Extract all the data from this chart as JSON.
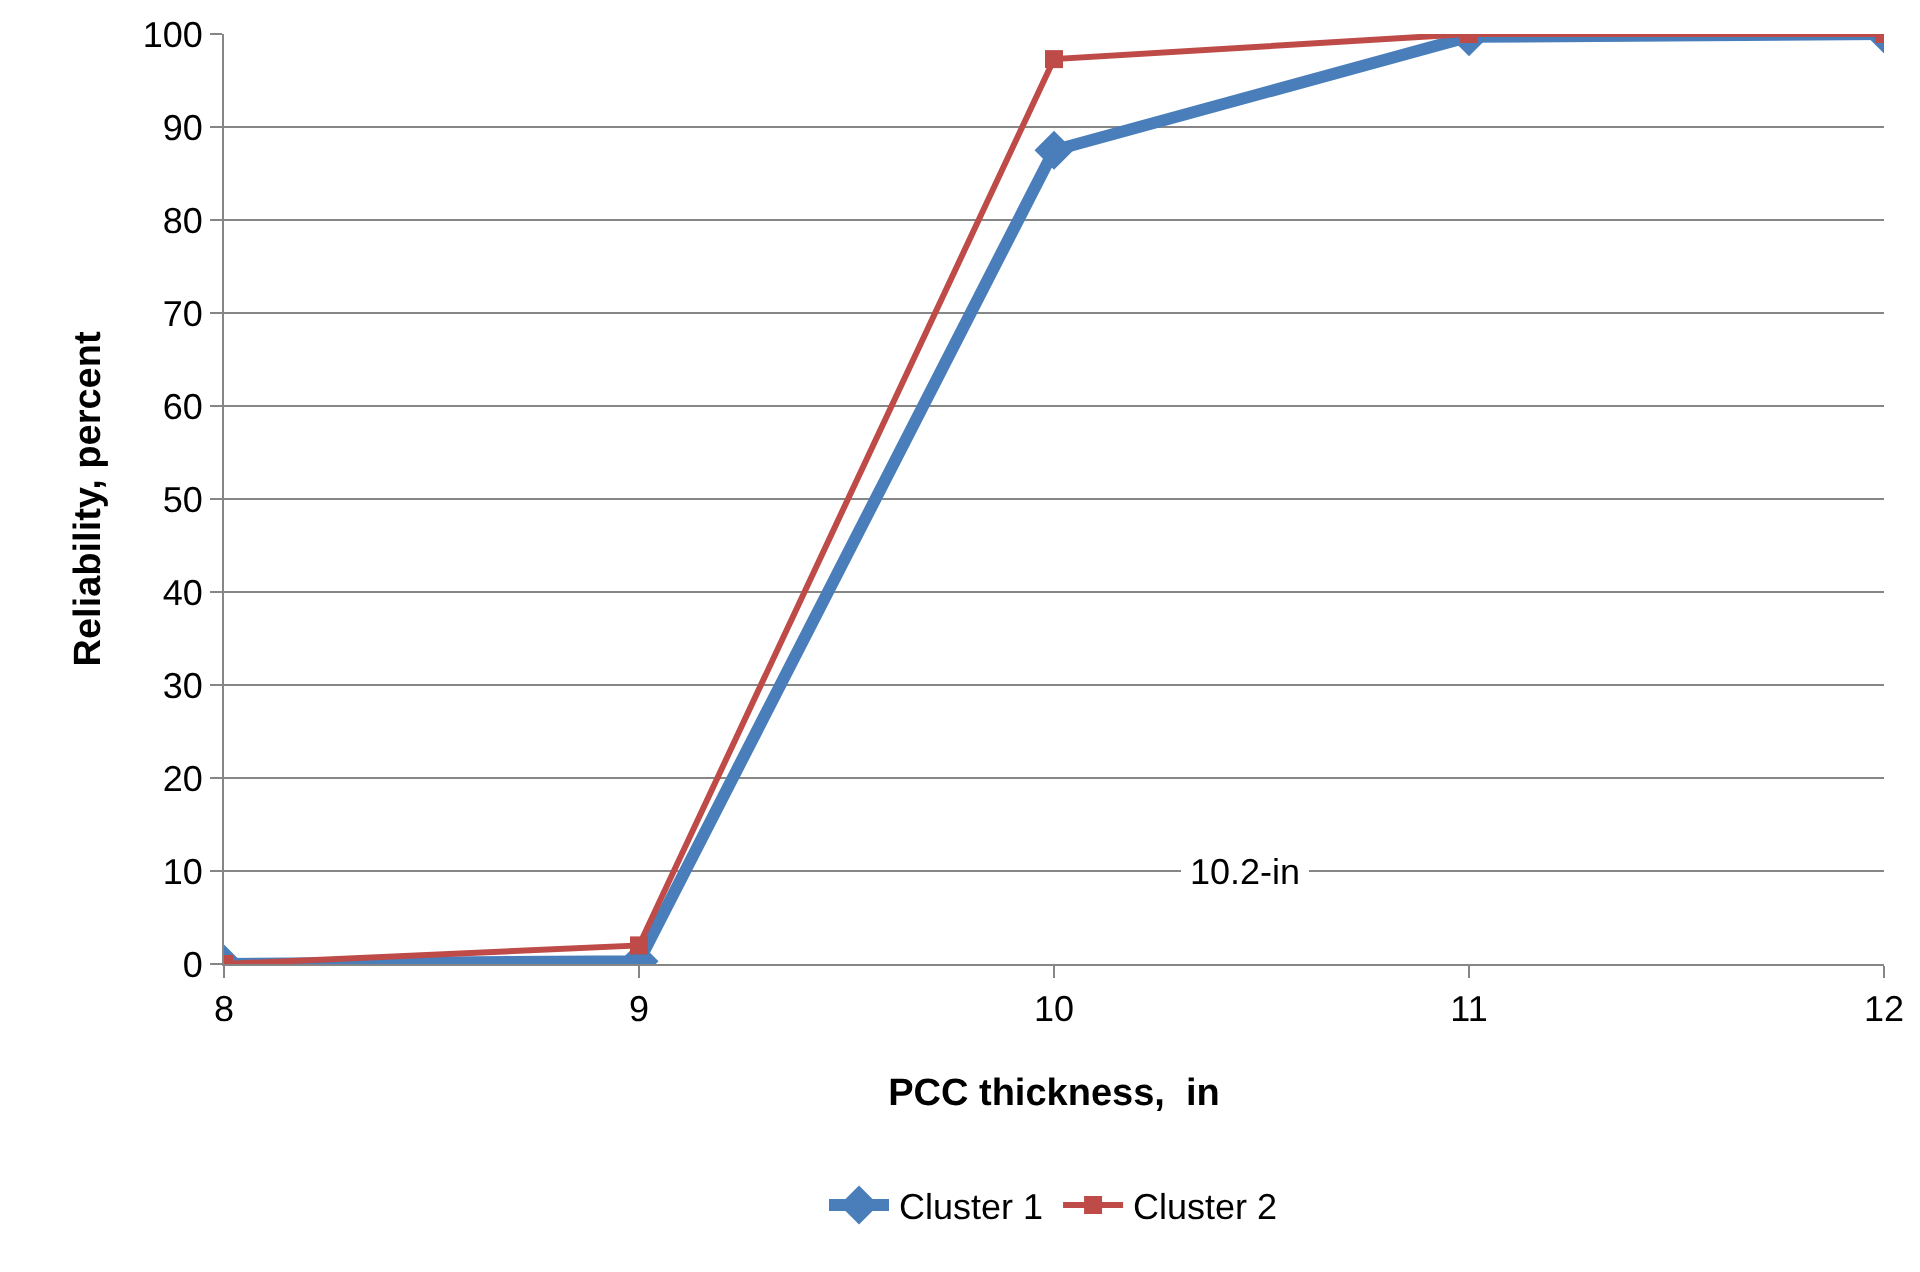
{
  "chart_data": {
    "type": "line",
    "xlabel": "PCC thickness,  in",
    "ylabel": "Reliability, percent",
    "x": [
      8,
      9,
      10,
      11,
      12
    ],
    "series": [
      {
        "name": "Cluster 1",
        "color": "#4a7ebb",
        "marker": "diamond",
        "values": [
          0,
          0.3,
          87.5,
          99.7,
          100
        ]
      },
      {
        "name": "Cluster 2",
        "color": "#be4b48",
        "marker": "square",
        "values": [
          0,
          2,
          97.3,
          100,
          100
        ]
      }
    ],
    "xlim": [
      8,
      12
    ],
    "xticks": [
      8,
      9,
      10,
      11,
      12
    ],
    "ylim": [
      0,
      100
    ],
    "yticks": [
      0,
      10,
      20,
      30,
      40,
      50,
      60,
      70,
      80,
      90,
      100
    ],
    "grid": "y",
    "legend": "bottom",
    "line_style": "solid",
    "annotations": [
      "10.2-in"
    ]
  }
}
